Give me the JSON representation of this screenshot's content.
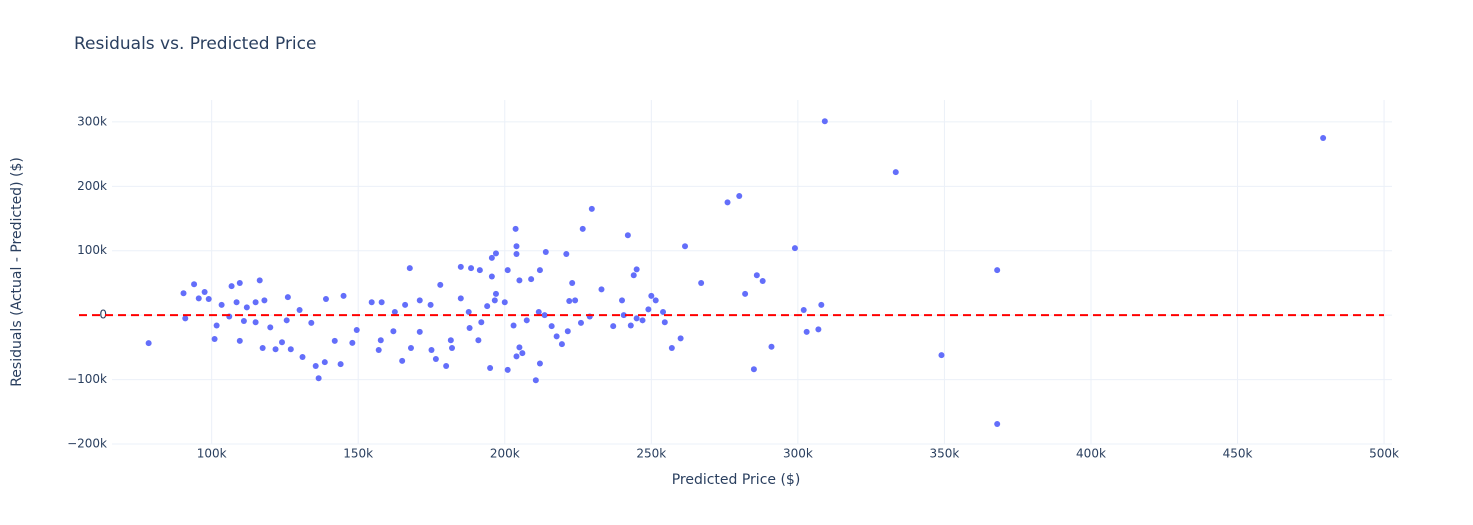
{
  "chart_data": {
    "type": "scatter",
    "title": "Residuals vs. Predicted Price",
    "x_label": "Predicted Price ($)",
    "y_label": "Residuals (Actual - Predicted) ($)",
    "xlim": [
      66000,
      502700
    ],
    "ylim": [
      -200000,
      334000
    ],
    "xticks": [
      {
        "value": 100000,
        "label": "100k"
      },
      {
        "value": 150000,
        "label": "150k"
      },
      {
        "value": 200000,
        "label": "200k"
      },
      {
        "value": 250000,
        "label": "250k"
      },
      {
        "value": 300000,
        "label": "300k"
      },
      {
        "value": 350000,
        "label": "350k"
      },
      {
        "value": 400000,
        "label": "400k"
      },
      {
        "value": 450000,
        "label": "450k"
      },
      {
        "value": 500000,
        "label": "500k"
      }
    ],
    "yticks": [
      {
        "value": -200000,
        "label": "−200k"
      },
      {
        "value": -100000,
        "label": "−100k"
      },
      {
        "value": 0,
        "label": "0"
      },
      {
        "value": 100000,
        "label": "100k"
      },
      {
        "value": 200000,
        "label": "200k"
      },
      {
        "value": 300000,
        "label": "300k"
      }
    ],
    "grid": true,
    "color": "#636efa",
    "hline": 0,
    "hline_color": "#ff0000",
    "x": [
      78500,
      309200,
      333400,
      479200,
      368000,
      368000,
      349000,
      308000,
      307000,
      303000,
      299000,
      302000,
      280000,
      276000,
      286000,
      288000,
      282000,
      285000,
      291000,
      267000,
      261500,
      260000,
      257000,
      229700,
      226600,
      242000,
      233000,
      245000,
      244000,
      250000,
      251500,
      254600,
      254000,
      240000,
      237000,
      203700,
      204000,
      197000,
      204000,
      214000,
      221000,
      195600,
      209000,
      205000,
      191500,
      195600,
      167600,
      185000,
      188500,
      201000,
      212000,
      196600,
      197000,
      178000,
      201000,
      195000,
      210600,
      212000,
      176500,
      180000,
      165000,
      162000,
      136500,
      135500,
      138600,
      144000,
      131000,
      91000,
      90400,
      94000,
      97600,
      101700,
      106800,
      109600,
      116400,
      101000,
      109600,
      117400,
      121800,
      124000,
      127000,
      95600,
      99000,
      103400,
      108500,
      112000,
      115000,
      118000,
      106000,
      111000,
      115000,
      120000,
      125600,
      126000,
      130000,
      134000,
      139000,
      145000,
      142000,
      148000,
      149500,
      154600,
      158000,
      157700,
      157000,
      162500,
      166000,
      171000,
      174700,
      168000,
      171000,
      175000,
      181600,
      182000,
      185000,
      187700,
      188000,
      191000,
      192000,
      194000,
      200000,
      203000,
      205000,
      206000,
      204000,
      207500,
      211600,
      213600,
      216000,
      217700,
      219500,
      221500,
      222000,
      223000,
      224000,
      226000,
      229000,
      240600,
      243000,
      245000,
      247000,
      249000
    ],
    "values": [
      -43500,
      301000,
      222000,
      275000,
      70000,
      -169000,
      -62000,
      16000,
      -22000,
      -26000,
      104000,
      8000,
      185000,
      175000,
      62000,
      53000,
      33000,
      -84000,
      -49000,
      50000,
      107000,
      -36000,
      -51000,
      165000,
      134000,
      124000,
      40000,
      71000,
      62000,
      30000,
      23000,
      -11000,
      5000,
      23000,
      -17000,
      134000,
      107000,
      96000,
      95000,
      98000,
      95000,
      60000,
      56000,
      54000,
      70000,
      89000,
      73000,
      75000,
      73000,
      70000,
      70000,
      23000,
      33000,
      47000,
      -85000,
      -82000,
      -101000,
      -75000,
      -68000,
      -79000,
      -71000,
      -25000,
      -98000,
      -79000,
      -73000,
      -76000,
      -65000,
      -5000,
      34000,
      48000,
      36000,
      -16000,
      45000,
      50000,
      54000,
      -37000,
      -40000,
      -51000,
      -53000,
      -42000,
      -53000,
      26000,
      25000,
      16000,
      20000,
      12000,
      20000,
      23000,
      -2000,
      -9000,
      -11000,
      -19000,
      -8000,
      28000,
      8000,
      -12000,
      25000,
      30000,
      -40000,
      -43000,
      -23000,
      20000,
      20000,
      -39000,
      -54000,
      5000,
      16000,
      23000,
      16000,
      -51000,
      -26000,
      -54000,
      -39000,
      -51000,
      26000,
      5000,
      -20000,
      -39000,
      -11000,
      14000,
      20000,
      -16000,
      -50000,
      -59000,
      -64000,
      -8000,
      5000,
      0,
      -17000,
      -33000,
      -45000,
      -25000,
      22000,
      50000,
      23000,
      -12000,
      -2000,
      0,
      -16000,
      -5000,
      -8000,
      9000
    ]
  }
}
